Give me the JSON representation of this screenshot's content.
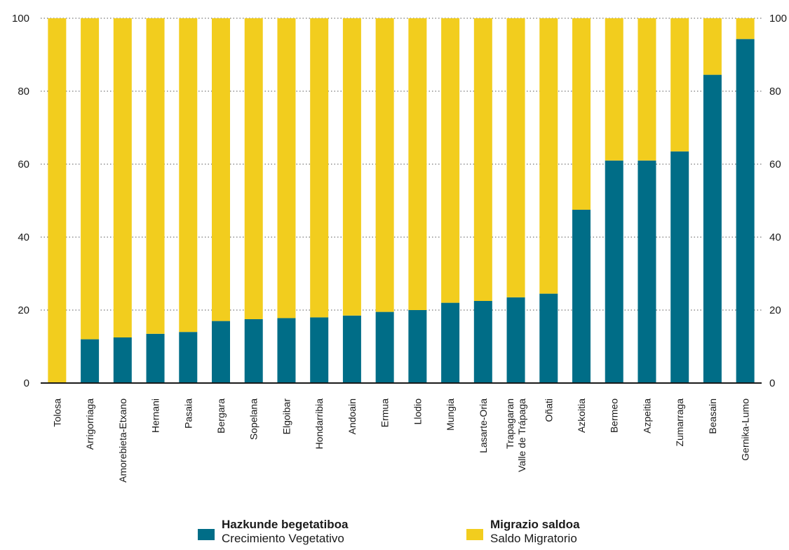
{
  "chart_data": {
    "type": "bar",
    "stacked": true,
    "categories": [
      [
        "Tolosa"
      ],
      [
        "Arrigorriaga"
      ],
      [
        "Amorebieta-Etxano"
      ],
      [
        "Hernani"
      ],
      [
        "Pasaia"
      ],
      [
        "Bergara"
      ],
      [
        "Sopelana"
      ],
      [
        "Elgoibar"
      ],
      [
        "Hondarribia"
      ],
      [
        "Andoain"
      ],
      [
        "Ermua"
      ],
      [
        "Llodio"
      ],
      [
        "Mungia"
      ],
      [
        "Lasarte-Oria"
      ],
      [
        "Trapagaran",
        "Valle de Trápaga"
      ],
      [
        "Oñati"
      ],
      [
        "Azkoitia"
      ],
      [
        "Bermeo"
      ],
      [
        "Azpeitia"
      ],
      [
        "Zumarraga"
      ],
      [
        "Beasain"
      ],
      [
        "Gernika-Lumo"
      ]
    ],
    "series": [
      {
        "name": "Hazkunde begetatiboa / Crecimiento Vegetativo",
        "color": "#006d87",
        "values": [
          0,
          12,
          12.5,
          13.5,
          14,
          17,
          17.5,
          17.8,
          18,
          18.5,
          19.5,
          20,
          22,
          22.5,
          23.5,
          24.5,
          47.5,
          61,
          61,
          63.5,
          84.5,
          94.3
        ]
      },
      {
        "name": "Migrazio saldoa / Saldo Migratorio",
        "color": "#f2cd1e",
        "values": [
          100,
          88,
          87.5,
          86.5,
          86,
          83,
          82.5,
          82.2,
          82,
          81.5,
          80.5,
          80,
          78,
          77.5,
          76.5,
          75.5,
          52.5,
          39,
          39,
          36.5,
          15.5,
          5.7
        ]
      }
    ],
    "ylim": [
      0,
      100
    ],
    "yticks": [
      0,
      20,
      40,
      60,
      80,
      100
    ],
    "grid": true,
    "legend_position": "bottom",
    "title": "",
    "xlabel": "",
    "ylabel": ""
  },
  "legend": {
    "items": [
      {
        "title": "Hazkunde begetatiboa",
        "subtitle": "Crecimiento Vegetativo",
        "color": "#006d87"
      },
      {
        "title": "Migrazio saldoa",
        "subtitle": "Saldo Migratorio",
        "color": "#f2cd1e"
      }
    ]
  }
}
